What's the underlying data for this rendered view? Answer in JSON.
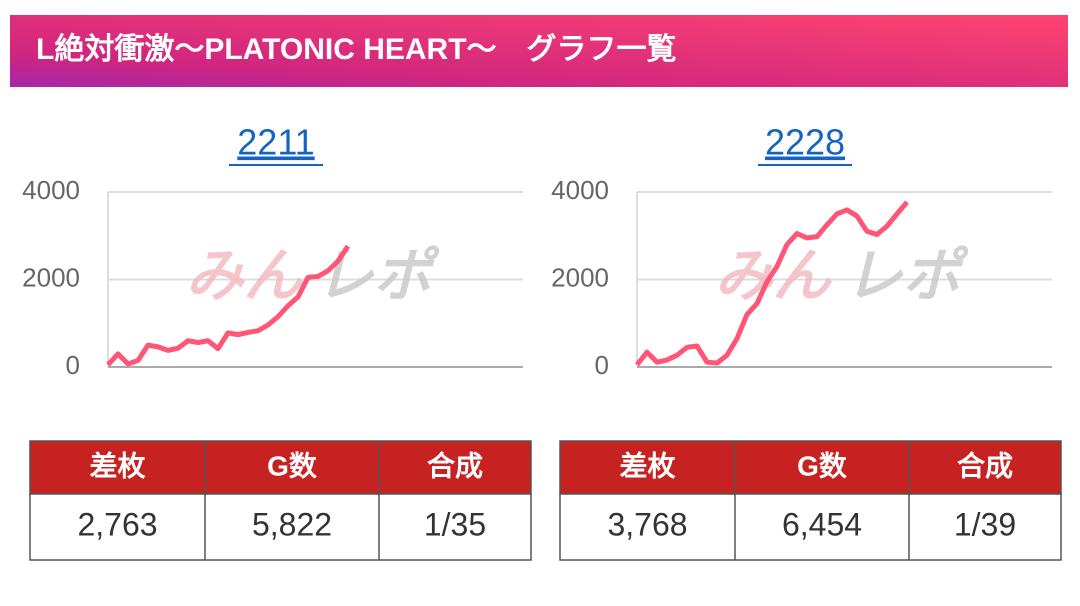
{
  "header": {
    "title": "L絶対衝激〜PLATONIC HEART〜　グラフ一覧"
  },
  "watermark": [
    "みん",
    "レポ"
  ],
  "chart_data": [
    {
      "type": "line",
      "title": "2211",
      "color": "#ff5577",
      "grid": true,
      "x": [
        0,
        1,
        2,
        3,
        4,
        5,
        6,
        7,
        8,
        9,
        10,
        11,
        12,
        13,
        14,
        15,
        16,
        17,
        18,
        19,
        20,
        21,
        22,
        23,
        24
      ],
      "values": [
        50,
        300,
        70,
        150,
        500,
        460,
        380,
        430,
        600,
        560,
        600,
        420,
        780,
        740,
        790,
        830,
        960,
        1150,
        1400,
        1600,
        2050,
        2070,
        2200,
        2420,
        2763
      ],
      "xlim": [
        0,
        41.5
      ],
      "ylim": [
        0,
        4000
      ],
      "yticks": [
        0,
        2000,
        4000
      ]
    },
    {
      "type": "line",
      "title": "2228",
      "color": "#ff5577",
      "grid": true,
      "x": [
        0,
        1,
        2,
        3,
        4,
        5,
        6,
        7,
        8,
        9,
        10,
        11,
        12,
        13,
        14,
        15,
        16,
        17,
        18,
        19,
        20,
        21,
        22,
        23,
        24,
        25,
        26,
        27
      ],
      "values": [
        50,
        340,
        110,
        160,
        270,
        450,
        480,
        110,
        90,
        270,
        650,
        1200,
        1450,
        1950,
        2300,
        2800,
        3050,
        2950,
        2980,
        3250,
        3500,
        3590,
        3450,
        3100,
        3030,
        3220,
        3500,
        3768
      ],
      "xlim": [
        0,
        41.5
      ],
      "ylim": [
        0,
        4000
      ],
      "yticks": [
        0,
        2000,
        4000
      ]
    }
  ],
  "tables": [
    {
      "headers": [
        "差枚",
        "G数",
        "合成"
      ],
      "rows": [
        [
          "2,763",
          "5,822",
          "1/35"
        ]
      ]
    },
    {
      "headers": [
        "差枚",
        "G数",
        "合成"
      ],
      "rows": [
        [
          "3,768",
          "6,454",
          "1/39"
        ]
      ]
    }
  ]
}
